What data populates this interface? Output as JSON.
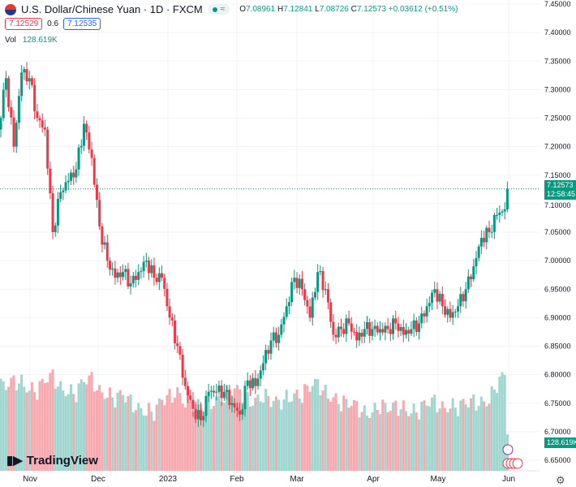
{
  "header": {
    "symbol": "U.S. Dollar/Chinese Yuan · 1D · FXCM",
    "open": "7.08961",
    "high": "7.12841",
    "low": "7.08726",
    "close": "7.12573",
    "change": "+0.03612 (+0.51%)",
    "o_label": "O",
    "h_label": "H",
    "l_label": "L",
    "c_label": "C",
    "market_status_icon": "dot-icon",
    "compare_icon": "approx-icon"
  },
  "quote": {
    "bid": "7.12529",
    "spread": "0.6",
    "ask": "7.12535"
  },
  "volume": {
    "label": "Vol",
    "value": "128.619K"
  },
  "last_price": {
    "price": "7.12573",
    "countdown": "12:58:45"
  },
  "logo": "TradingView",
  "colors": {
    "up": "#089981",
    "down": "#f23645",
    "up_vol": "#9fd6cf",
    "down_vol": "#f6a9ae"
  },
  "chart_data": {
    "type": "candlestick",
    "title": "U.S. Dollar/Chinese Yuan · 1D · FXCM",
    "ylim": [
      6.63,
      7.45
    ],
    "y_ticks": [
      "7.45000",
      "7.40000",
      "7.35000",
      "7.30000",
      "7.25000",
      "7.20000",
      "7.15000",
      "7.10000",
      "7.05000",
      "7.00000",
      "6.95000",
      "6.90000",
      "6.85000",
      "6.80000",
      "6.75000",
      "6.70000",
      "6.65000"
    ],
    "x_ticks": [
      "Nov",
      "Dec",
      "2023",
      "Feb",
      "Mar",
      "Apr",
      "May",
      "Jun"
    ],
    "closes": [
      7.23,
      7.32,
      7.2,
      7.33,
      7.32,
      7.25,
      7.23,
      7.05,
      7.12,
      7.14,
      7.16,
      7.24,
      7.18,
      7.06,
      7.0,
      6.97,
      6.98,
      6.96,
      6.98,
      7.0,
      6.97,
      6.97,
      6.9,
      6.85,
      6.78,
      6.74,
      6.72,
      6.77,
      6.77,
      6.77,
      6.75,
      6.73,
      6.79,
      6.78,
      6.82,
      6.86,
      6.87,
      6.92,
      6.97,
      6.95,
      6.9,
      6.98,
      6.95,
      6.87,
      6.88,
      6.89,
      6.86,
      6.88,
      6.88,
      6.88,
      6.88,
      6.89,
      6.87,
      6.88,
      6.89,
      6.92,
      6.95,
      6.92,
      6.9,
      6.92,
      6.95,
      6.99,
      7.04,
      7.05,
      7.08,
      7.09,
      7.12573
    ],
    "volumes_k": [
      300,
      290,
      310,
      320,
      300,
      280,
      310,
      330,
      300,
      290,
      270,
      310,
      320,
      290,
      280,
      250,
      260,
      240,
      230,
      220,
      200,
      240,
      260,
      290,
      250,
      230,
      220,
      240,
      260,
      270,
      280,
      270,
      250,
      260,
      270,
      240,
      230,
      260,
      280,
      270,
      290,
      300,
      280,
      270,
      240,
      230,
      220,
      210,
      220,
      230,
      210,
      220,
      230,
      220,
      210,
      230,
      240,
      230,
      240,
      220,
      230,
      240,
      250,
      260,
      300,
      330,
      128.619
    ]
  }
}
